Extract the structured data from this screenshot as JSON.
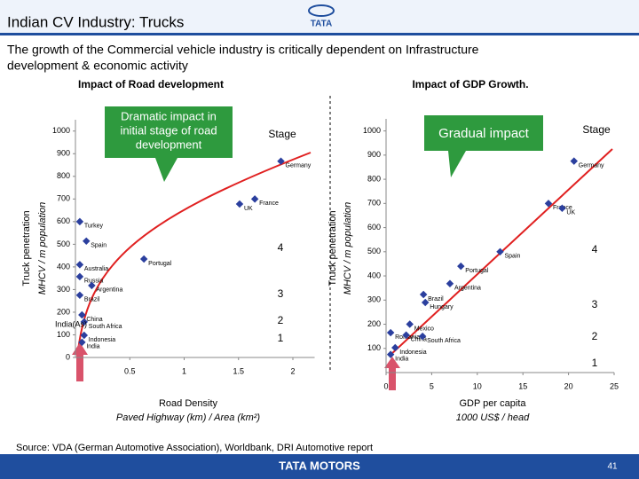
{
  "header": {
    "title": "Indian CV Industry: Trucks",
    "logo": "TATA"
  },
  "subtitle": [
    "The growth of the Commercial vehicle industry is critically dependent on Infrastructure",
    "development & economic activity"
  ],
  "chart_data": [
    {
      "type": "scatter",
      "title": "Impact of Road development",
      "callout": [
        "Dramatic impact in",
        "initial stage of road",
        "development"
      ],
      "stage_label": "Stage",
      "stages": [
        4,
        3,
        2,
        1
      ],
      "extra_label": "India(As)",
      "xlabel": [
        "Road Density",
        "Paved Highway (km) / Area (km²)"
      ],
      "ylabel": [
        "Truck penetration",
        "MHCV / m population"
      ],
      "xlim": [
        0,
        2.2
      ],
      "xticks": [
        0.5,
        1,
        1.5,
        2
      ],
      "ylim": [
        0,
        1050
      ],
      "yticks": [
        0,
        100,
        200,
        300,
        400,
        500,
        600,
        700,
        800,
        900,
        1000
      ],
      "color": "#2b3f9e",
      "labels": [
        "Germany",
        "France",
        "UK",
        "Turkey",
        "Spain",
        "Portugal",
        "Australia",
        "Russia",
        "Argentina",
        "Brazil",
        "China",
        "South Africa",
        "Indonesia",
        "India"
      ],
      "x": [
        1.89,
        1.65,
        1.51,
        0.04,
        0.1,
        0.63,
        0.04,
        0.04,
        0.15,
        0.04,
        0.06,
        0.08,
        0.08,
        0.06
      ],
      "values": [
        867,
        700,
        678,
        600,
        514,
        435,
        410,
        357,
        318,
        275,
        188,
        157,
        98,
        67
      ]
    },
    {
      "type": "scatter",
      "title": "Impact of GDP Growth.",
      "callout": [
        "Gradual impact"
      ],
      "stage_label": "Stage",
      "stages": [
        4,
        3,
        2,
        1
      ],
      "xlabel": [
        "GDP per capita",
        "1000 US$ / head"
      ],
      "ylabel": [
        "Truck penetration",
        "MHCV / m population"
      ],
      "xlim": [
        0,
        25
      ],
      "xticks": [
        0,
        5,
        10,
        15,
        20,
        25
      ],
      "ylim": [
        0,
        1050
      ],
      "yticks": [
        100,
        200,
        300,
        400,
        500,
        600,
        700,
        800,
        900,
        1000
      ],
      "color": "#2b3f9e",
      "labels": [
        "Germany",
        "France",
        "UK",
        "Spain",
        "Portugal",
        "Argentina",
        "Brazil",
        "Hungary",
        "Mexico",
        "Romania",
        "China",
        "South Africa",
        "Indonesia",
        "India"
      ],
      "x": [
        20.6,
        17.8,
        19.3,
        12.5,
        8.2,
        7,
        4.1,
        4.3,
        2.6,
        0.5,
        2.2,
        4,
        1,
        0.5
      ],
      "values": [
        875,
        700,
        680,
        500,
        440,
        368,
        323,
        290,
        200,
        165,
        155,
        150,
        103,
        75
      ]
    }
  ],
  "source": "Source: VDA (German Automotive Association), Worldbank, DRI Automotive report",
  "footer": {
    "brand": "TATA MOTORS",
    "page": 41
  }
}
